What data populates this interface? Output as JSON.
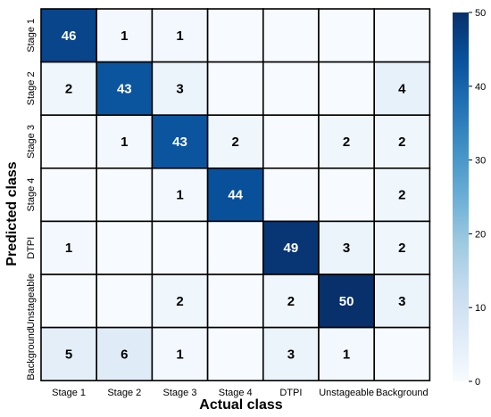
{
  "chart_data": {
    "type": "heatmap",
    "title": "",
    "xlabel": "Actual class",
    "ylabel": "Predicted class",
    "x_categories": [
      "Stage 1",
      "Stage 2",
      "Stage 3",
      "Stage 4",
      "DTPI",
      "Unstageable",
      "Background"
    ],
    "y_categories": [
      "Stage 1",
      "Stage 2",
      "Stage 3",
      "Stage 4",
      "DTPI",
      "Unstageable",
      "Background"
    ],
    "matrix": [
      [
        46,
        1,
        1,
        0,
        0,
        0,
        0
      ],
      [
        2,
        43,
        3,
        0,
        0,
        0,
        4
      ],
      [
        0,
        1,
        43,
        2,
        0,
        2,
        2
      ],
      [
        0,
        0,
        1,
        44,
        0,
        0,
        2
      ],
      [
        1,
        0,
        0,
        0,
        49,
        3,
        2
      ],
      [
        0,
        0,
        2,
        0,
        2,
        50,
        3
      ],
      [
        5,
        6,
        1,
        0,
        3,
        1,
        0
      ]
    ],
    "zero_label_hidden": true,
    "colorbar": {
      "min": 0,
      "max": 50,
      "ticks": [
        0,
        10,
        20,
        30,
        40,
        50
      ]
    },
    "colormap": "Blues",
    "grid_color": "#000000"
  }
}
